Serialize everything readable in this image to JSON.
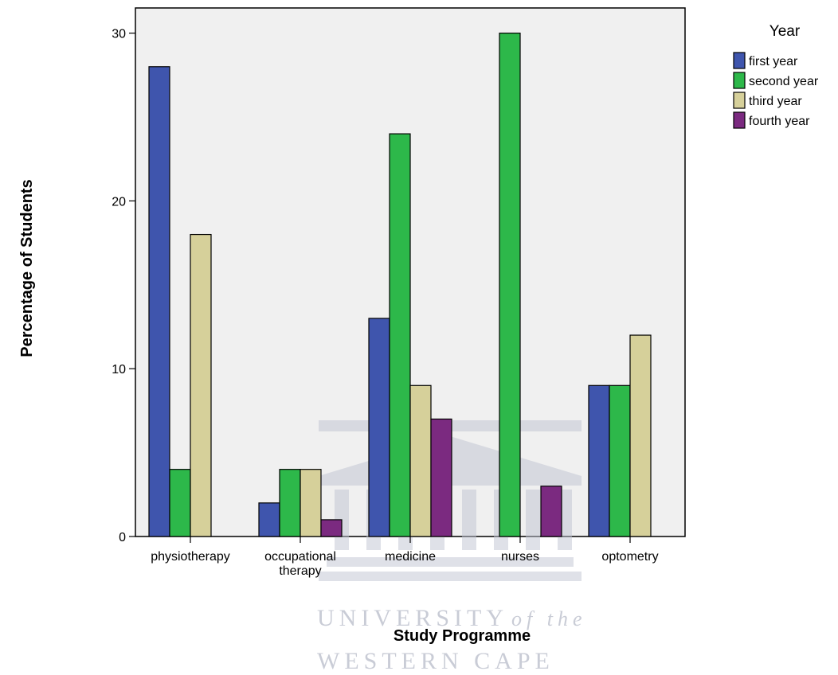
{
  "chart_data": {
    "type": "bar",
    "categories": [
      [
        "physiotherapy"
      ],
      [
        "occupational",
        "therapy"
      ],
      [
        "medicine"
      ],
      [
        "nurses"
      ],
      [
        "optometry"
      ]
    ],
    "series": [
      {
        "name": "first year",
        "color": "#3f55ad",
        "values": [
          28,
          2,
          13,
          0,
          9
        ]
      },
      {
        "name": "second year",
        "color": "#2db84a",
        "values": [
          4,
          4,
          24,
          30,
          9
        ]
      },
      {
        "name": "third year",
        "color": "#d6d09a",
        "values": [
          18,
          4,
          9,
          0,
          12
        ]
      },
      {
        "name": "fourth year",
        "color": "#7b2a80",
        "values": [
          0,
          1,
          7,
          3,
          0
        ]
      }
    ],
    "xlabel": "Study Programme",
    "ylabel": "Percentage of Students",
    "ylim": [
      0,
      31.5
    ],
    "yticks": [
      0,
      10,
      20,
      30
    ],
    "legend_title": "Year",
    "legend_position": "top-right",
    "plot_background": "#f0f0f0",
    "grid": false
  },
  "watermark": {
    "line1": "UNIVERSITY",
    "line1_suffix": "of the",
    "line2": "WESTERN CAPE"
  }
}
